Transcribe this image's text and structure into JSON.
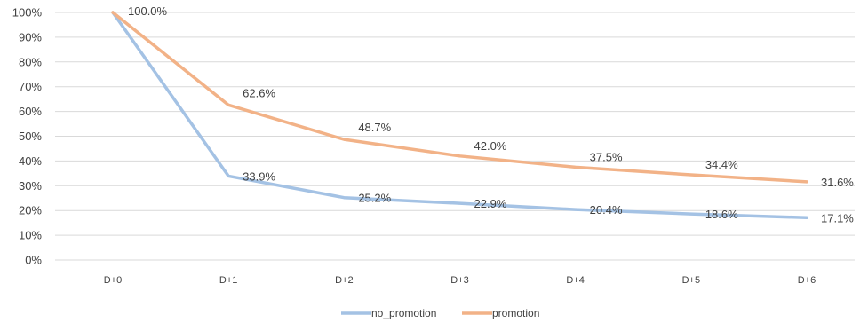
{
  "chart_data": {
    "type": "line",
    "title": "",
    "xlabel": "",
    "ylabel": "",
    "categories": [
      "D+0",
      "D+1",
      "D+2",
      "D+3",
      "D+4",
      "D+5",
      "D+6"
    ],
    "ylim": [
      0,
      100
    ],
    "yticks": [
      "0%",
      "10%",
      "20%",
      "30%",
      "40%",
      "50%",
      "60%",
      "70%",
      "80%",
      "90%",
      "100%"
    ],
    "grid": "horizontal",
    "legend_position": "bottom",
    "series": [
      {
        "name": "no_promotion",
        "color": "#a4c2e4",
        "values": [
          100.0,
          33.9,
          25.2,
          22.9,
          20.4,
          18.6,
          17.1
        ],
        "labels": [
          "100.0%",
          "33.9%",
          "25.2%",
          "22.9%",
          "20.4%",
          "18.6%",
          "17.1%"
        ]
      },
      {
        "name": "promotion",
        "color": "#f2b287",
        "values": [
          100.0,
          62.6,
          48.7,
          42.0,
          37.5,
          34.4,
          31.6
        ],
        "labels": [
          "100.0%",
          "62.6%",
          "48.7%",
          "42.0%",
          "37.5%",
          "34.4%",
          "31.6%"
        ]
      }
    ]
  }
}
